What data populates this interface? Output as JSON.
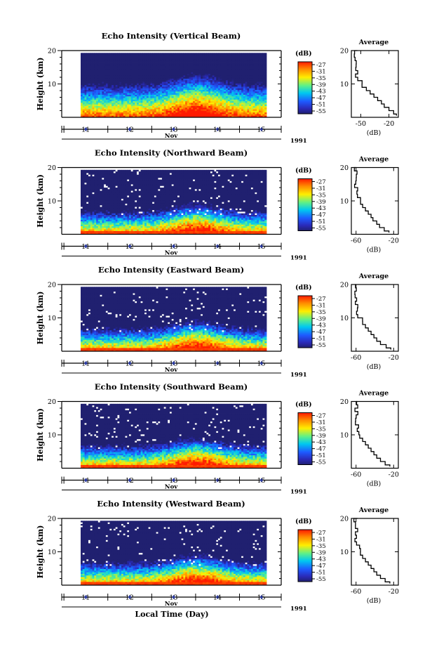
{
  "figure": {
    "xlabel": "Local Time (Day)",
    "month_label": "Nov",
    "year_label": "1991",
    "colorbar_unit": "(dB)",
    "colorbar_ticks": [
      "-27",
      "-31",
      "-35",
      "-39",
      "-43",
      "-47",
      "-51",
      "-55"
    ],
    "average_title": "Average",
    "average_xlabel": "(dB)"
  },
  "chart_data": [
    {
      "type": "heatmap",
      "title": "Echo Intensity (Vertical Beam)",
      "ylabel": "Height (km)",
      "xlabel": "Nov",
      "x_ticks": [
        "11",
        "12",
        "13",
        "14",
        "15"
      ],
      "y_ticks": [
        "20",
        "10"
      ],
      "ylim": [
        0,
        20
      ],
      "colorbar": {
        "label": "(dB)",
        "ticks": [
          -27,
          -31,
          -35,
          -39,
          -43,
          -47,
          -51,
          -55
        ]
      },
      "average_profile": {
        "xlabel": "(dB)",
        "x_ticks": [
          "-50",
          "-20"
        ],
        "xlim": [
          -60,
          -10
        ],
        "height": [
          0.5,
          1,
          2,
          3,
          4,
          5,
          6,
          7,
          8,
          9,
          10,
          11,
          12,
          13,
          14,
          15,
          16,
          17,
          18,
          19,
          20
        ],
        "intensity_db": [
          -12,
          -15,
          -20,
          -25,
          -28,
          -32,
          -36,
          -40,
          -44,
          -48,
          -50,
          -52,
          -54,
          -55,
          -55,
          -56,
          -55,
          -56,
          -55,
          -56,
          -55
        ]
      }
    },
    {
      "type": "heatmap",
      "title": "Echo Intensity (Northward Beam)",
      "ylabel": "Height (km)",
      "xlabel": "Nov",
      "x_ticks": [
        "11",
        "12",
        "13",
        "14",
        "15"
      ],
      "y_ticks": [
        "20",
        "10"
      ],
      "ylim": [
        0,
        20
      ],
      "colorbar": {
        "label": "(dB)",
        "ticks": [
          -27,
          -31,
          -35,
          -39,
          -43,
          -47,
          -51,
          -55
        ]
      },
      "average_profile": {
        "xlabel": "(dB)",
        "x_ticks": [
          "-60",
          "-20"
        ],
        "xlim": [
          -65,
          -15
        ],
        "height": [
          0.5,
          1,
          2,
          3,
          4,
          5,
          6,
          7,
          8,
          9,
          10,
          11,
          12,
          13,
          14,
          15,
          16,
          17,
          18,
          19,
          20
        ],
        "intensity_db": [
          -25,
          -30,
          -35,
          -38,
          -42,
          -44,
          -47,
          -50,
          -53,
          -55,
          -57,
          -58,
          -59,
          -60,
          -60,
          -61,
          -60,
          -61,
          -60,
          -61,
          -60
        ]
      }
    },
    {
      "type": "heatmap",
      "title": "Echo Intensity (Eastward Beam)",
      "ylabel": "Height (km)",
      "xlabel": "Nov",
      "x_ticks": [
        "11",
        "12",
        "13",
        "14",
        "15"
      ],
      "y_ticks": [
        "20",
        "10"
      ],
      "ylim": [
        0,
        20
      ],
      "colorbar": {
        "label": "(dB)",
        "ticks": [
          -27,
          -31,
          -35,
          -39,
          -43,
          -47,
          -51,
          -55
        ]
      },
      "average_profile": {
        "xlabel": "(dB)",
        "x_ticks": [
          "-60",
          "-20"
        ],
        "xlim": [
          -65,
          -15
        ],
        "height": [
          0.5,
          1,
          2,
          3,
          4,
          5,
          6,
          7,
          8,
          9,
          10,
          11,
          12,
          13,
          14,
          15,
          16,
          17,
          18,
          19,
          20
        ],
        "intensity_db": [
          -23,
          -28,
          -34,
          -38,
          -41,
          -44,
          -47,
          -50,
          -53,
          -55,
          -57,
          -58,
          -59,
          -60,
          -60,
          -61,
          -60,
          -61,
          -60,
          -61,
          -60
        ]
      }
    },
    {
      "type": "heatmap",
      "title": "Echo Intensity (Southward Beam)",
      "ylabel": "Height (km)",
      "xlabel": "Nov",
      "x_ticks": [
        "11",
        "12",
        "13",
        "14",
        "15"
      ],
      "y_ticks": [
        "20",
        "10"
      ],
      "ylim": [
        0,
        20
      ],
      "colorbar": {
        "label": "(dB)",
        "ticks": [
          -27,
          -31,
          -35,
          -39,
          -43,
          -47,
          -51,
          -55
        ]
      },
      "average_profile": {
        "xlabel": "(dB)",
        "x_ticks": [
          "-60",
          "-20"
        ],
        "xlim": [
          -65,
          -15
        ],
        "height": [
          0.5,
          1,
          2,
          3,
          4,
          5,
          6,
          7,
          8,
          9,
          10,
          11,
          12,
          13,
          14,
          15,
          16,
          17,
          18,
          19,
          20
        ],
        "intensity_db": [
          -24,
          -29,
          -34,
          -38,
          -41,
          -44,
          -47,
          -50,
          -53,
          -55,
          -57,
          -58,
          -59,
          -60,
          -60,
          -61,
          -60,
          -61,
          -60,
          -61,
          -60
        ]
      }
    },
    {
      "type": "heatmap",
      "title": "Echo Intensity (Westward Beam)",
      "ylabel": "Height (km)",
      "xlabel": "Nov",
      "x_ticks": [
        "11",
        "12",
        "13",
        "14",
        "15"
      ],
      "y_ticks": [
        "20",
        "10"
      ],
      "ylim": [
        0,
        20
      ],
      "colorbar": {
        "label": "(dB)",
        "ticks": [
          -27,
          -31,
          -35,
          -39,
          -43,
          -47,
          -51,
          -55
        ]
      },
      "average_profile": {
        "xlabel": "(dB)",
        "x_ticks": [
          "-60",
          "-20"
        ],
        "xlim": [
          -65,
          -15
        ],
        "height": [
          0.5,
          1,
          2,
          3,
          4,
          5,
          6,
          7,
          8,
          9,
          10,
          11,
          12,
          13,
          14,
          15,
          16,
          17,
          18,
          19,
          20
        ],
        "intensity_db": [
          -24,
          -29,
          -34,
          -38,
          -41,
          -44,
          -47,
          -50,
          -53,
          -55,
          -57,
          -58,
          -59,
          -60,
          -60,
          -61,
          -60,
          -61,
          -60,
          -61,
          -60
        ]
      }
    }
  ]
}
